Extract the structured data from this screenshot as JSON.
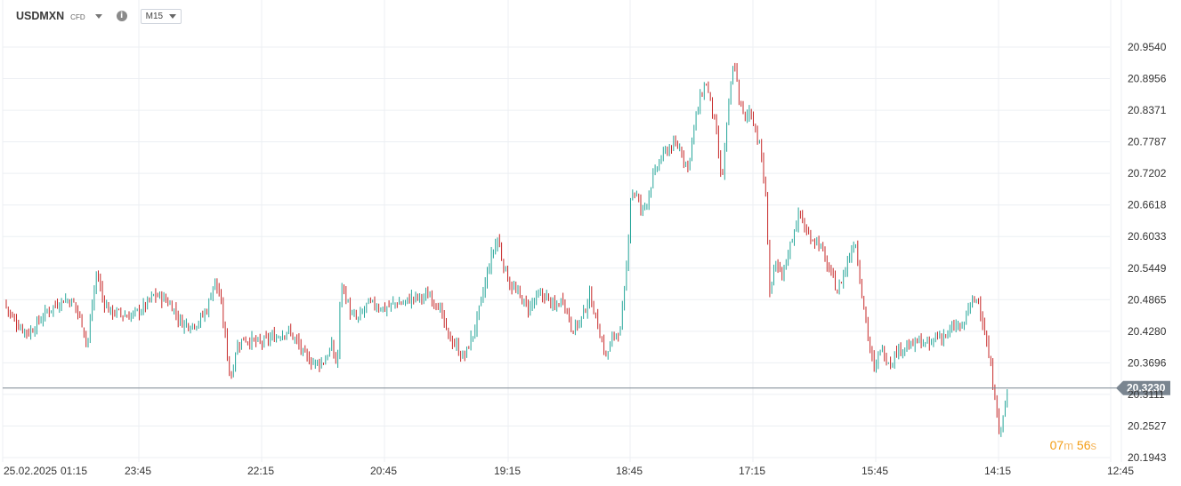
{
  "header": {
    "symbol": "USDMXN",
    "instrument_type": "CFD",
    "info_icon": "info-icon",
    "timeframe": "M15"
  },
  "current_price_label": "20.3230",
  "countdown": {
    "minutes": "07",
    "min_unit": "m",
    "seconds": "56",
    "sec_unit": "s"
  },
  "colors": {
    "up": "#26a69a",
    "down": "#c62828",
    "grid": "#eceff3",
    "price_line": "#7a8590",
    "price_tag": "#7a8590",
    "countdown": "#f39c12"
  },
  "chart_data": {
    "type": "candlestick",
    "title": "USDMXN",
    "timeframe": "M15",
    "y_ticks": [
      "20.9540",
      "20.8956",
      "20.8371",
      "20.7787",
      "20.7202",
      "20.6618",
      "20.6033",
      "20.5449",
      "20.4865",
      "20.4280",
      "20.3696",
      "20.3111",
      "20.2527",
      "20.1943"
    ],
    "x_ticks": [
      "25.02.2025",
      "01:15",
      "23:45",
      "22:15",
      "20:45",
      "19:15",
      "18:45",
      "17:15",
      "15:45",
      "14:15",
      "12:45"
    ],
    "ylim": [
      20.19,
      20.99
    ],
    "current_price": 20.323,
    "grid": true,
    "close_path": [
      [
        0,
        20.485
      ],
      [
        10,
        20.455
      ],
      [
        20,
        20.435
      ],
      [
        30,
        20.425
      ],
      [
        40,
        20.445
      ],
      [
        50,
        20.465
      ],
      [
        60,
        20.478
      ],
      [
        70,
        20.488
      ],
      [
        80,
        20.48
      ],
      [
        90,
        20.44
      ],
      [
        95,
        20.4
      ],
      [
        100,
        20.47
      ],
      [
        106,
        20.54
      ],
      [
        112,
        20.49
      ],
      [
        120,
        20.465
      ],
      [
        130,
        20.462
      ],
      [
        140,
        20.455
      ],
      [
        150,
        20.462
      ],
      [
        160,
        20.475
      ],
      [
        170,
        20.495
      ],
      [
        180,
        20.49
      ],
      [
        190,
        20.475
      ],
      [
        200,
        20.445
      ],
      [
        210,
        20.44
      ],
      [
        220,
        20.445
      ],
      [
        230,
        20.47
      ],
      [
        238,
        20.525
      ],
      [
        244,
        20.49
      ],
      [
        250,
        20.42
      ],
      [
        256,
        20.335
      ],
      [
        262,
        20.395
      ],
      [
        270,
        20.415
      ],
      [
        280,
        20.41
      ],
      [
        290,
        20.405
      ],
      [
        300,
        20.415
      ],
      [
        310,
        20.42
      ],
      [
        320,
        20.43
      ],
      [
        330,
        20.41
      ],
      [
        340,
        20.38
      ],
      [
        350,
        20.37
      ],
      [
        360,
        20.37
      ],
      [
        370,
        20.4
      ],
      [
        376,
        20.36
      ],
      [
        380,
        20.52
      ],
      [
        386,
        20.49
      ],
      [
        392,
        20.455
      ],
      [
        400,
        20.45
      ],
      [
        410,
        20.48
      ],
      [
        420,
        20.475
      ],
      [
        430,
        20.47
      ],
      [
        440,
        20.48
      ],
      [
        450,
        20.48
      ],
      [
        460,
        20.49
      ],
      [
        470,
        20.49
      ],
      [
        480,
        20.495
      ],
      [
        490,
        20.475
      ],
      [
        500,
        20.42
      ],
      [
        510,
        20.4
      ],
      [
        516,
        20.38
      ],
      [
        520,
        20.385
      ],
      [
        530,
        20.43
      ],
      [
        540,
        20.5
      ],
      [
        548,
        20.56
      ],
      [
        556,
        20.6
      ],
      [
        562,
        20.555
      ],
      [
        570,
        20.515
      ],
      [
        580,
        20.495
      ],
      [
        590,
        20.47
      ],
      [
        600,
        20.49
      ],
      [
        610,
        20.495
      ],
      [
        620,
        20.47
      ],
      [
        630,
        20.49
      ],
      [
        640,
        20.43
      ],
      [
        650,
        20.45
      ],
      [
        660,
        20.495
      ],
      [
        670,
        20.43
      ],
      [
        678,
        20.38
      ],
      [
        686,
        20.42
      ],
      [
        694,
        20.43
      ],
      [
        700,
        20.52
      ],
      [
        706,
        20.69
      ],
      [
        712,
        20.68
      ],
      [
        718,
        20.65
      ],
      [
        724,
        20.67
      ],
      [
        730,
        20.71
      ],
      [
        740,
        20.75
      ],
      [
        750,
        20.77
      ],
      [
        760,
        20.77
      ],
      [
        770,
        20.73
      ],
      [
        776,
        20.8
      ],
      [
        784,
        20.86
      ],
      [
        790,
        20.89
      ],
      [
        796,
        20.85
      ],
      [
        802,
        20.79
      ],
      [
        808,
        20.7
      ],
      [
        812,
        20.78
      ],
      [
        818,
        20.88
      ],
      [
        822,
        20.93
      ],
      [
        828,
        20.85
      ],
      [
        834,
        20.82
      ],
      [
        840,
        20.84
      ],
      [
        846,
        20.8
      ],
      [
        852,
        20.76
      ],
      [
        858,
        20.66
      ],
      [
        862,
        20.5
      ],
      [
        868,
        20.55
      ],
      [
        876,
        20.53
      ],
      [
        882,
        20.57
      ],
      [
        890,
        20.62
      ],
      [
        896,
        20.65
      ],
      [
        902,
        20.61
      ],
      [
        910,
        20.6
      ],
      [
        918,
        20.59
      ],
      [
        926,
        20.55
      ],
      [
        932,
        20.53
      ],
      [
        938,
        20.5
      ],
      [
        944,
        20.53
      ],
      [
        950,
        20.56
      ],
      [
        958,
        20.6
      ],
      [
        962,
        20.54
      ],
      [
        968,
        20.47
      ],
      [
        974,
        20.4
      ],
      [
        980,
        20.35
      ],
      [
        986,
        20.4
      ],
      [
        992,
        20.38
      ],
      [
        998,
        20.37
      ],
      [
        1004,
        20.39
      ],
      [
        1012,
        20.4
      ],
      [
        1020,
        20.4
      ],
      [
        1030,
        20.41
      ],
      [
        1040,
        20.4
      ],
      [
        1050,
        20.42
      ],
      [
        1060,
        20.42
      ],
      [
        1066,
        20.43
      ],
      [
        1072,
        20.44
      ],
      [
        1078,
        20.43
      ],
      [
        1084,
        20.47
      ],
      [
        1090,
        20.48
      ],
      [
        1096,
        20.49
      ],
      [
        1102,
        20.44
      ],
      [
        1108,
        20.38
      ],
      [
        1112,
        20.34
      ],
      [
        1116,
        20.3
      ],
      [
        1120,
        20.23
      ],
      [
        1126,
        20.29
      ],
      [
        1130,
        20.32
      ]
    ]
  }
}
